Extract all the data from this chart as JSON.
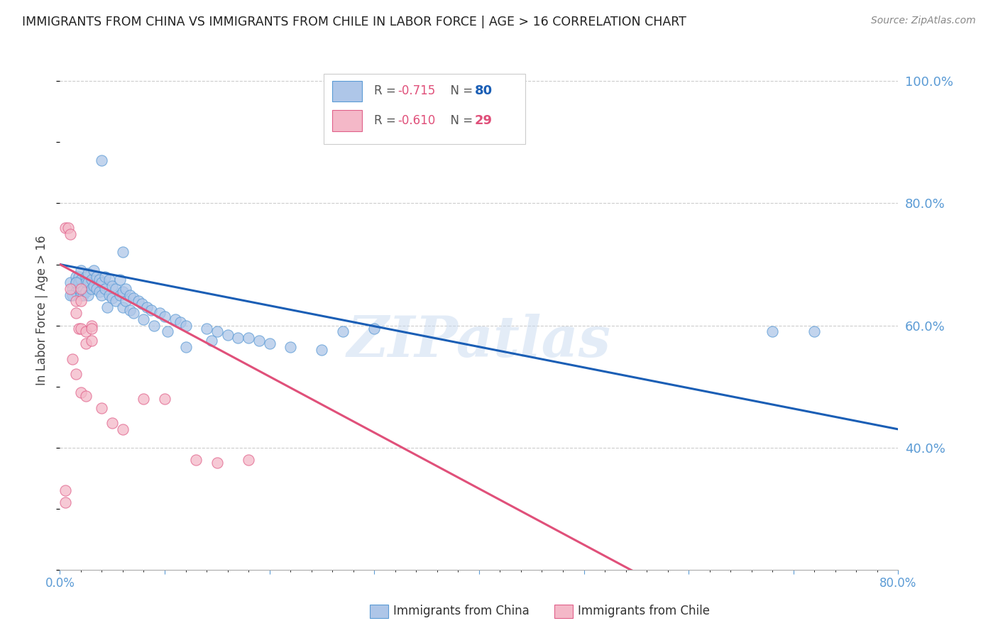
{
  "title": "IMMIGRANTS FROM CHINA VS IMMIGRANTS FROM CHILE IN LABOR FORCE | AGE > 16 CORRELATION CHART",
  "source": "Source: ZipAtlas.com",
  "ylabel": "In Labor Force | Age > 16",
  "right_yticks": [
    40.0,
    60.0,
    80.0,
    100.0
  ],
  "china_color": "#aec6e8",
  "china_color_dark": "#5b9bd5",
  "chile_color": "#f4b8c8",
  "chile_color_dark": "#e0608a",
  "trend_china_color": "#1a5eb5",
  "trend_chile_color": "#e0507a",
  "legend_R_china": "R = -0.715",
  "legend_N_china": "N = 80",
  "legend_R_chile": "R = -0.610",
  "legend_N_chile": "N = 29",
  "watermark": "ZIPatlas",
  "china_scatter": [
    [
      0.01,
      0.67
    ],
    [
      0.012,
      0.66
    ],
    [
      0.012,
      0.65
    ],
    [
      0.015,
      0.68
    ],
    [
      0.015,
      0.67
    ],
    [
      0.015,
      0.655
    ],
    [
      0.018,
      0.68
    ],
    [
      0.018,
      0.67
    ],
    [
      0.018,
      0.66
    ],
    [
      0.02,
      0.65
    ],
    [
      0.02,
      0.69
    ],
    [
      0.02,
      0.675
    ],
    [
      0.022,
      0.66
    ],
    [
      0.022,
      0.65
    ],
    [
      0.025,
      0.68
    ],
    [
      0.025,
      0.67
    ],
    [
      0.025,
      0.655
    ],
    [
      0.027,
      0.685
    ],
    [
      0.027,
      0.67
    ],
    [
      0.027,
      0.65
    ],
    [
      0.03,
      0.675
    ],
    [
      0.03,
      0.66
    ],
    [
      0.032,
      0.69
    ],
    [
      0.032,
      0.665
    ],
    [
      0.035,
      0.68
    ],
    [
      0.035,
      0.66
    ],
    [
      0.038,
      0.675
    ],
    [
      0.038,
      0.655
    ],
    [
      0.04,
      0.67
    ],
    [
      0.04,
      0.65
    ],
    [
      0.043,
      0.68
    ],
    [
      0.043,
      0.66
    ],
    [
      0.047,
      0.675
    ],
    [
      0.047,
      0.65
    ],
    [
      0.05,
      0.665
    ],
    [
      0.05,
      0.645
    ],
    [
      0.053,
      0.66
    ],
    [
      0.053,
      0.64
    ],
    [
      0.057,
      0.675
    ],
    [
      0.057,
      0.65
    ],
    [
      0.06,
      0.655
    ],
    [
      0.06,
      0.63
    ],
    [
      0.063,
      0.66
    ],
    [
      0.063,
      0.64
    ],
    [
      0.067,
      0.65
    ],
    [
      0.067,
      0.625
    ],
    [
      0.07,
      0.645
    ],
    [
      0.07,
      0.62
    ],
    [
      0.075,
      0.64
    ],
    [
      0.078,
      0.635
    ],
    [
      0.08,
      0.61
    ],
    [
      0.083,
      0.63
    ],
    [
      0.087,
      0.625
    ],
    [
      0.09,
      0.6
    ],
    [
      0.095,
      0.62
    ],
    [
      0.1,
      0.615
    ],
    [
      0.103,
      0.59
    ],
    [
      0.11,
      0.61
    ],
    [
      0.115,
      0.605
    ],
    [
      0.12,
      0.6
    ],
    [
      0.14,
      0.595
    ],
    [
      0.145,
      0.575
    ],
    [
      0.15,
      0.59
    ],
    [
      0.16,
      0.585
    ],
    [
      0.17,
      0.58
    ],
    [
      0.19,
      0.575
    ],
    [
      0.2,
      0.57
    ],
    [
      0.22,
      0.565
    ],
    [
      0.25,
      0.56
    ],
    [
      0.27,
      0.59
    ],
    [
      0.12,
      0.565
    ],
    [
      0.18,
      0.58
    ],
    [
      0.04,
      0.87
    ],
    [
      0.06,
      0.72
    ],
    [
      0.3,
      0.595
    ],
    [
      0.68,
      0.59
    ],
    [
      0.72,
      0.59
    ],
    [
      0.01,
      0.65
    ],
    [
      0.015,
      0.67
    ],
    [
      0.045,
      0.63
    ]
  ],
  "chile_scatter": [
    [
      0.005,
      0.76
    ],
    [
      0.008,
      0.76
    ],
    [
      0.01,
      0.75
    ],
    [
      0.01,
      0.66
    ],
    [
      0.015,
      0.64
    ],
    [
      0.015,
      0.62
    ],
    [
      0.018,
      0.595
    ],
    [
      0.02,
      0.66
    ],
    [
      0.02,
      0.64
    ],
    [
      0.02,
      0.595
    ],
    [
      0.025,
      0.59
    ],
    [
      0.025,
      0.57
    ],
    [
      0.03,
      0.6
    ],
    [
      0.03,
      0.575
    ],
    [
      0.012,
      0.545
    ],
    [
      0.015,
      0.52
    ],
    [
      0.02,
      0.49
    ],
    [
      0.025,
      0.485
    ],
    [
      0.04,
      0.465
    ],
    [
      0.05,
      0.44
    ],
    [
      0.06,
      0.43
    ],
    [
      0.08,
      0.48
    ],
    [
      0.1,
      0.48
    ],
    [
      0.13,
      0.38
    ],
    [
      0.005,
      0.33
    ],
    [
      0.15,
      0.375
    ],
    [
      0.005,
      0.31
    ],
    [
      0.18,
      0.38
    ],
    [
      0.03,
      0.595
    ]
  ],
  "xmin": 0.0,
  "xmax": 0.8,
  "ymin": 0.2,
  "ymax": 1.05,
  "china_trend_x": [
    0.0,
    0.8
  ],
  "china_trend_y": [
    0.7,
    0.43
  ],
  "chile_trend_x": [
    0.0,
    0.55
  ],
  "chile_trend_y": [
    0.7,
    0.195
  ]
}
